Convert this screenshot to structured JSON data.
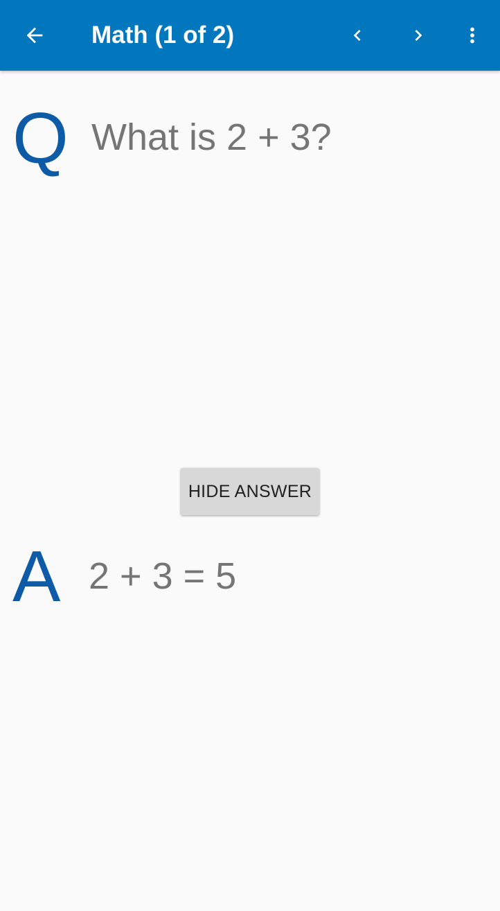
{
  "app_bar": {
    "title": "Math (1 of 2)",
    "background_color": "#0277bd",
    "icons": {
      "back": "arrow-left-icon",
      "previous": "chevron-left-icon",
      "next": "chevron-right-icon",
      "more": "more-vert-icon"
    }
  },
  "card": {
    "question_marker": "Q",
    "question_text": "What is 2 + 3?",
    "hide_answer_label": "HIDE ANSWER",
    "answer_marker": "A",
    "answer_text": "2 + 3 = 5",
    "marker_color": "#0d5aa7",
    "text_color": "#757575"
  }
}
